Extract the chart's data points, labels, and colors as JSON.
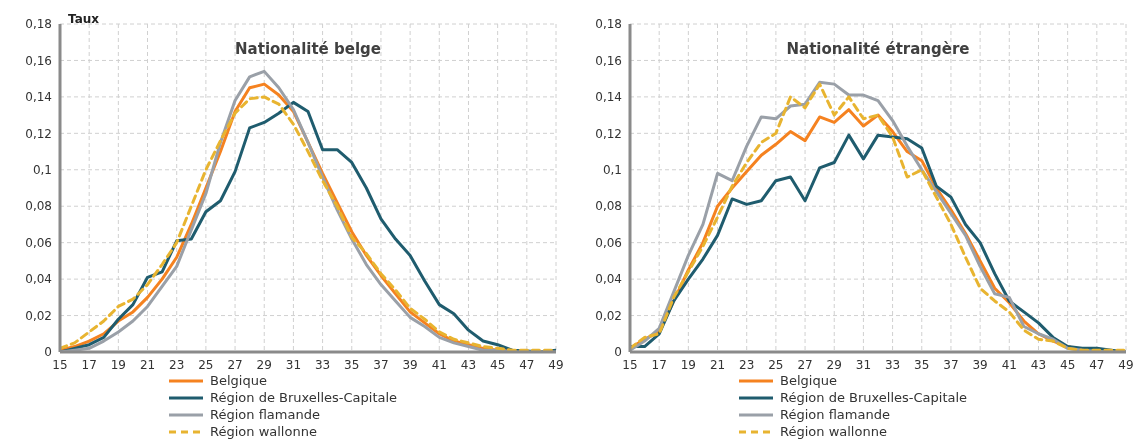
{
  "chart_data": [
    {
      "type": "line",
      "title": "Nationalité belge",
      "ylabel": "Taux",
      "x": [
        15,
        16,
        17,
        18,
        19,
        20,
        21,
        22,
        23,
        24,
        25,
        26,
        27,
        28,
        29,
        30,
        31,
        32,
        33,
        34,
        35,
        36,
        37,
        38,
        39,
        40,
        41,
        42,
        43,
        44,
        45,
        46,
        47,
        48,
        49
      ],
      "xlim": [
        15,
        49
      ],
      "xticks": [
        15,
        17,
        19,
        21,
        23,
        25,
        27,
        29,
        31,
        33,
        35,
        37,
        39,
        41,
        43,
        45,
        47,
        49
      ],
      "ylim": [
        0,
        0.18
      ],
      "yticks": [
        0,
        {
          "value": 0.02,
          "label": "0,02"
        },
        {
          "value": 0.04,
          "label": "0,04"
        },
        {
          "value": 0.06,
          "label": "0,06"
        },
        {
          "value": 0.08,
          "label": "0,08"
        },
        {
          "value": 0.1,
          "label": "0,1"
        },
        {
          "value": 0.12,
          "label": "0,12"
        },
        {
          "value": 0.14,
          "label": "0,14"
        },
        {
          "value": 0.16,
          "label": "0,16"
        },
        {
          "value": 0.18,
          "label": "0,18"
        }
      ],
      "grid": true,
      "legend": "bottom",
      "series": [
        {
          "name": "Belgique",
          "color": "#f58220",
          "line_style": "solid",
          "values": [
            0.001,
            0.003,
            0.006,
            0.01,
            0.017,
            0.022,
            0.03,
            0.04,
            0.052,
            0.07,
            0.09,
            0.11,
            0.132,
            0.145,
            0.147,
            0.141,
            0.132,
            0.115,
            0.098,
            0.082,
            0.066,
            0.053,
            0.042,
            0.032,
            0.022,
            0.016,
            0.01,
            0.006,
            0.004,
            0.002,
            0.001,
            0.0005,
            0,
            0,
            0
          ]
        },
        {
          "name": "Région de Bruxelles-Capitale",
          "color": "#1f5c6e",
          "line_style": "solid",
          "values": [
            0,
            0.002,
            0.004,
            0.008,
            0.018,
            0.026,
            0.041,
            0.044,
            0.061,
            0.062,
            0.077,
            0.083,
            0.099,
            0.123,
            0.126,
            0.131,
            0.137,
            0.132,
            0.111,
            0.111,
            0.104,
            0.09,
            0.073,
            0.062,
            0.053,
            0.039,
            0.026,
            0.021,
            0.012,
            0.006,
            0.004,
            0.001,
            0.0005,
            0,
            0.001
          ]
        },
        {
          "name": "Région flamande",
          "color": "#9aa0a8",
          "line_style": "solid",
          "values": [
            0,
            0.001,
            0.002,
            0.006,
            0.011,
            0.017,
            0.025,
            0.036,
            0.047,
            0.067,
            0.087,
            0.115,
            0.138,
            0.151,
            0.154,
            0.145,
            0.133,
            0.115,
            0.096,
            0.078,
            0.062,
            0.048,
            0.037,
            0.028,
            0.019,
            0.014,
            0.008,
            0.005,
            0.003,
            0.001,
            0.001,
            0,
            0,
            0,
            0
          ]
        },
        {
          "name": "Région wallonne",
          "color": "#e8b430",
          "line_style": "dashed",
          "values": [
            0.002,
            0.005,
            0.011,
            0.017,
            0.025,
            0.029,
            0.037,
            0.048,
            0.06,
            0.08,
            0.1,
            0.116,
            0.131,
            0.139,
            0.14,
            0.136,
            0.125,
            0.11,
            0.094,
            0.08,
            0.063,
            0.054,
            0.043,
            0.034,
            0.024,
            0.018,
            0.011,
            0.007,
            0.005,
            0.003,
            0.002,
            0.001,
            0.001,
            0.001,
            0.001
          ]
        }
      ]
    },
    {
      "type": "line",
      "title": "Nationalité étrangère",
      "x": [
        15,
        16,
        17,
        18,
        19,
        20,
        21,
        22,
        23,
        24,
        25,
        26,
        27,
        28,
        29,
        30,
        31,
        32,
        33,
        34,
        35,
        36,
        37,
        38,
        39,
        40,
        41,
        42,
        43,
        44,
        45,
        46,
        47,
        48,
        49
      ],
      "xlim": [
        15,
        49
      ],
      "xticks": [
        15,
        17,
        19,
        21,
        23,
        25,
        27,
        29,
        31,
        33,
        35,
        37,
        39,
        41,
        43,
        45,
        47,
        49
      ],
      "ylim": [
        0,
        0.18
      ],
      "yticks": [
        0,
        {
          "value": 0.02,
          "label": "0,02"
        },
        {
          "value": 0.04,
          "label": "0,04"
        },
        {
          "value": 0.06,
          "label": "0,06"
        },
        {
          "value": 0.08,
          "label": "0,08"
        },
        {
          "value": 0.1,
          "label": "0,1"
        },
        {
          "value": 0.12,
          "label": "0,12"
        },
        {
          "value": 0.14,
          "label": "0,14"
        },
        {
          "value": 0.16,
          "label": "0,16"
        },
        {
          "value": 0.18,
          "label": "0,18"
        }
      ],
      "grid": true,
      "legend": "bottom",
      "series": [
        {
          "name": "Belgique",
          "color": "#f58220",
          "line_style": "solid",
          "values": [
            0.002,
            0.007,
            0.011,
            0.028,
            0.045,
            0.06,
            0.08,
            0.09,
            0.099,
            0.108,
            0.114,
            0.121,
            0.116,
            0.129,
            0.126,
            0.133,
            0.124,
            0.13,
            0.121,
            0.11,
            0.105,
            0.09,
            0.078,
            0.065,
            0.05,
            0.035,
            0.027,
            0.017,
            0.01,
            0.006,
            0.003,
            0.001,
            null,
            null,
            null
          ]
        },
        {
          "name": "Région de Bruxelles-Capitale",
          "color": "#1f5c6e",
          "line_style": "solid",
          "values": [
            0.003,
            0.003,
            0.01,
            0.028,
            0.04,
            0.051,
            0.064,
            0.084,
            0.081,
            0.083,
            0.094,
            0.096,
            0.083,
            0.101,
            0.104,
            0.119,
            0.106,
            0.119,
            0.118,
            0.117,
            0.112,
            0.091,
            0.085,
            0.07,
            0.06,
            0.043,
            0.028,
            0.022,
            0.016,
            0.008,
            0.003,
            0.002,
            0.002,
            0.001,
            0
          ]
        },
        {
          "name": "Région flamande",
          "color": "#9aa0a8",
          "line_style": "solid",
          "values": [
            0.001,
            0.006,
            0.013,
            0.033,
            0.053,
            0.07,
            0.098,
            0.094,
            0.113,
            0.129,
            0.128,
            0.135,
            0.136,
            0.148,
            0.147,
            0.141,
            0.141,
            0.138,
            0.127,
            0.113,
            0.1,
            0.088,
            0.076,
            0.064,
            0.047,
            0.032,
            0.03,
            0.014,
            0.01,
            0.007,
            0.002,
            0.001,
            0,
            0,
            0
          ]
        },
        {
          "name": "Région wallonne",
          "color": "#e8b430",
          "line_style": "dashed",
          "values": [
            0.002,
            0.008,
            0.01,
            0.03,
            0.044,
            0.058,
            0.074,
            0.091,
            0.104,
            0.115,
            0.12,
            0.14,
            0.134,
            0.147,
            0.13,
            0.14,
            0.128,
            0.13,
            0.118,
            0.096,
            0.1,
            0.085,
            0.07,
            0.052,
            0.035,
            0.028,
            0.022,
            0.012,
            0.007,
            0.006,
            0.002,
            0.001,
            0.001,
            0.001,
            0.001
          ]
        }
      ]
    }
  ]
}
